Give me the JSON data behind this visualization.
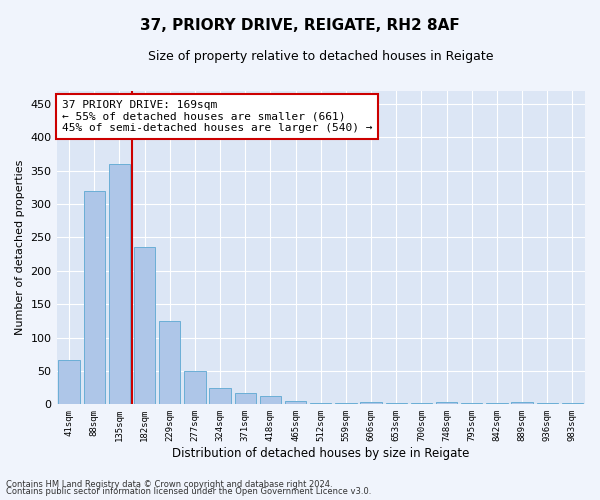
{
  "title1": "37, PRIORY DRIVE, REIGATE, RH2 8AF",
  "title2": "Size of property relative to detached houses in Reigate",
  "xlabel": "Distribution of detached houses by size in Reigate",
  "ylabel": "Number of detached properties",
  "categories": [
    "41sqm",
    "88sqm",
    "135sqm",
    "182sqm",
    "229sqm",
    "277sqm",
    "324sqm",
    "371sqm",
    "418sqm",
    "465sqm",
    "512sqm",
    "559sqm",
    "606sqm",
    "653sqm",
    "700sqm",
    "748sqm",
    "795sqm",
    "842sqm",
    "889sqm",
    "936sqm",
    "983sqm"
  ],
  "values": [
    67,
    320,
    360,
    235,
    125,
    50,
    25,
    17,
    13,
    5,
    2,
    2,
    4,
    2,
    2,
    4,
    2,
    2,
    4,
    2,
    2
  ],
  "bar_color": "#aec6e8",
  "bar_edge_color": "#6baed6",
  "vline_color": "#cc0000",
  "annotation_text": "37 PRIORY DRIVE: 169sqm\n← 55% of detached houses are smaller (661)\n45% of semi-detached houses are larger (540) →",
  "annotation_box_color": "#ffffff",
  "annotation_box_edge": "#cc0000",
  "ylim": [
    0,
    470
  ],
  "yticks": [
    0,
    50,
    100,
    150,
    200,
    250,
    300,
    350,
    400,
    450
  ],
  "fig_background_color": "#f0f4fc",
  "axes_background_color": "#dce6f5",
  "grid_color": "#ffffff",
  "footer1": "Contains HM Land Registry data © Crown copyright and database right 2024.",
  "footer2": "Contains public sector information licensed under the Open Government Licence v3.0."
}
